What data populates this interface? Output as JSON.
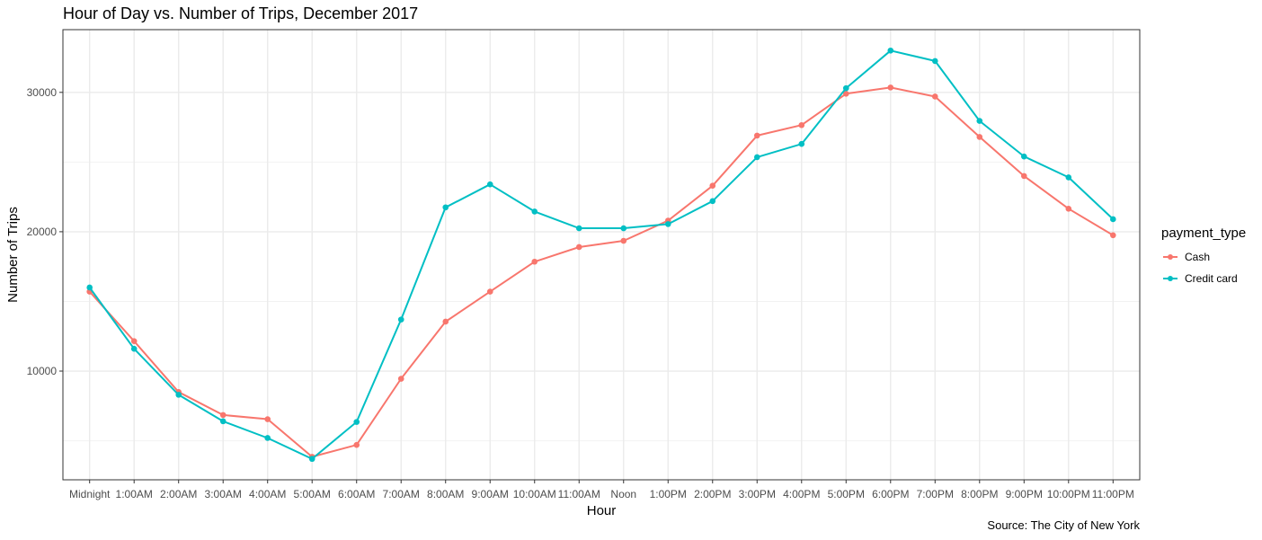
{
  "title": "Hour of Day vs. Number of Trips, December 2017",
  "caption": "Source: The City of New York",
  "chart_data": {
    "type": "line",
    "title": "Hour of Day vs. Number of Trips, December 2017",
    "xlabel": "Hour",
    "ylabel": "Number of Trips",
    "categories": [
      "Midnight",
      "1:00AM",
      "2:00AM",
      "3:00AM",
      "4:00AM",
      "5:00AM",
      "6:00AM",
      "7:00AM",
      "8:00AM",
      "9:00AM",
      "10:00AM",
      "11:00AM",
      "Noon",
      "1:00PM",
      "2:00PM",
      "3:00PM",
      "4:00PM",
      "5:00PM",
      "6:00PM",
      "7:00PM",
      "8:00PM",
      "9:00PM",
      "10:00PM",
      "11:00PM"
    ],
    "yticks": [
      10000,
      20000,
      30000
    ],
    "ylim": [
      2200,
      34500
    ],
    "grid": true,
    "legend_position": "right",
    "legend_title": "payment_type",
    "series": [
      {
        "name": "Cash",
        "color": "#F8766D",
        "values": [
          15700,
          12150,
          8500,
          6850,
          6550,
          3850,
          4700,
          9450,
          13550,
          15700,
          17850,
          18900,
          19350,
          20800,
          23300,
          26900,
          27650,
          29900,
          30350,
          29700,
          26800,
          24000,
          21650,
          19750
        ]
      },
      {
        "name": "Credit card",
        "color": "#00BFC4",
        "values": [
          16000,
          11600,
          8300,
          6400,
          5200,
          3700,
          6350,
          13700,
          21750,
          23400,
          21450,
          20250,
          20250,
          20550,
          22200,
          25350,
          26300,
          30300,
          33000,
          32250,
          27950,
          25400,
          23900,
          20900
        ]
      }
    ]
  }
}
